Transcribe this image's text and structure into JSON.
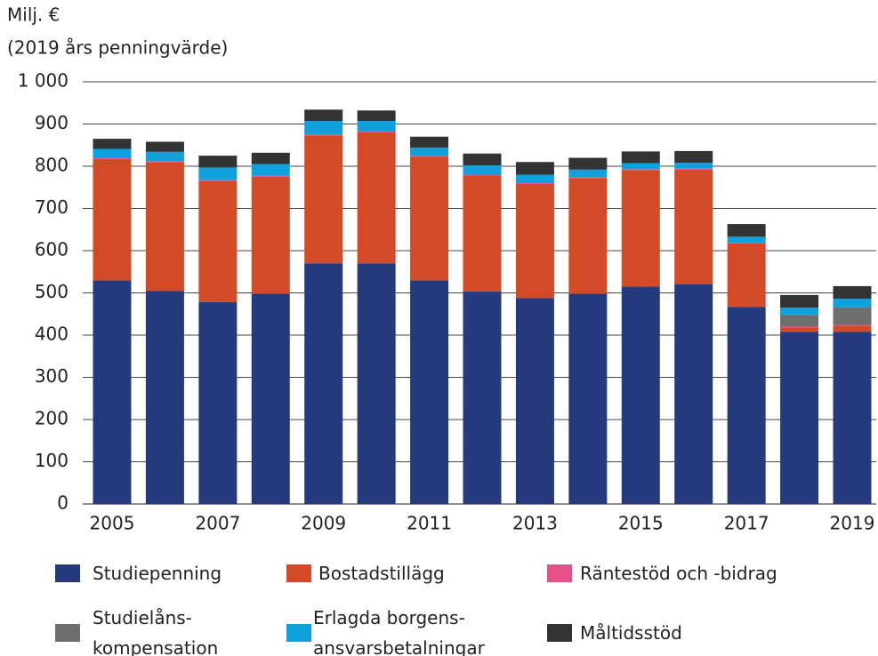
{
  "chart_data": {
    "type": "stacked_bar",
    "title": "Milj. €",
    "subtitle": "(2019 års penningvärde)",
    "categories": [
      "2005",
      null,
      "2007",
      null,
      "2009",
      null,
      "2011",
      null,
      "2013",
      null,
      "2015",
      null,
      "2017",
      null,
      "2019"
    ],
    "series": [
      {
        "name": "Studiepenning",
        "color": "#253a7c",
        "values": [
          530,
          505,
          478,
          498,
          570,
          570,
          530,
          503,
          488,
          498,
          515,
          520,
          467,
          408,
          408
        ]
      },
      {
        "name": "Bostadstillägg",
        "color": "#d34a27",
        "values": [
          287,
          305,
          287,
          277,
          303,
          310,
          292,
          275,
          270,
          274,
          276,
          272,
          150,
          10,
          14
        ]
      },
      {
        "name": "Räntestöd och -bidrag",
        "color": "#e8508a",
        "values": [
          2,
          2,
          2,
          2,
          2,
          2,
          2,
          2,
          2,
          2,
          2,
          2,
          2,
          2,
          2
        ]
      },
      {
        "name": "Studielåns-\nkompensation",
        "color": "#6e6e6e",
        "values": [
          0,
          0,
          0,
          0,
          0,
          0,
          0,
          0,
          0,
          0,
          0,
          0,
          0,
          28,
          42
        ]
      },
      {
        "name": "Erlagda borgens-\nansvarsbetalningar",
        "color": "#0fa1dc",
        "values": [
          22,
          22,
          30,
          28,
          32,
          25,
          20,
          22,
          20,
          18,
          14,
          14,
          14,
          17,
          20
        ]
      },
      {
        "name": "Måltidsstöd",
        "color": "#333333",
        "values": [
          24,
          24,
          28,
          27,
          27,
          25,
          26,
          28,
          30,
          28,
          28,
          28,
          30,
          30,
          30
        ]
      }
    ],
    "ylim": [
      0,
      1000
    ],
    "yticks": [
      0,
      100,
      200,
      300,
      400,
      500,
      600,
      700,
      800,
      900,
      {
        "value": 1000,
        "label": "1 000"
      }
    ],
    "grid": true
  }
}
